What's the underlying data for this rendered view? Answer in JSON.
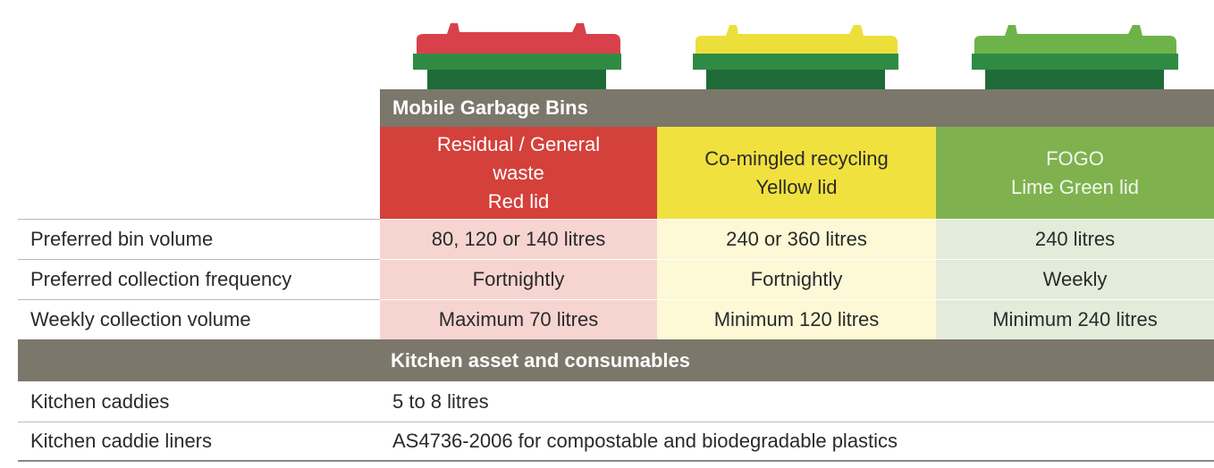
{
  "header": {
    "title": "Mobile Garbage Bins",
    "bins": [
      {
        "lines": [
          "Residual / General",
          "waste",
          "Red lid"
        ]
      },
      {
        "lines": [
          "Co-mingled recycling",
          "Yellow lid"
        ]
      },
      {
        "lines": [
          "FOGO",
          "Lime Green lid"
        ]
      }
    ]
  },
  "table": {
    "rows": [
      {
        "label": "Preferred bin volume",
        "values": [
          "80, 120 or 140 litres",
          "240 or 360 litres",
          "240 litres"
        ]
      },
      {
        "label": "Preferred collection frequency",
        "values": [
          "Fortnightly",
          "Fortnightly",
          "Weekly"
        ]
      },
      {
        "label": "Weekly collection volume",
        "values": [
          "Maximum 70 litres",
          "Minimum 120 litres",
          "Minimum 240 litres"
        ]
      }
    ]
  },
  "kitchen": {
    "title": "Kitchen asset and consumables",
    "rows": [
      {
        "label": "Kitchen caddies",
        "value": "5 to 8 litres"
      },
      {
        "label": "Kitchen caddie liners",
        "value": "AS4736-2006 for compostable and biodegradable plastics"
      }
    ]
  }
}
